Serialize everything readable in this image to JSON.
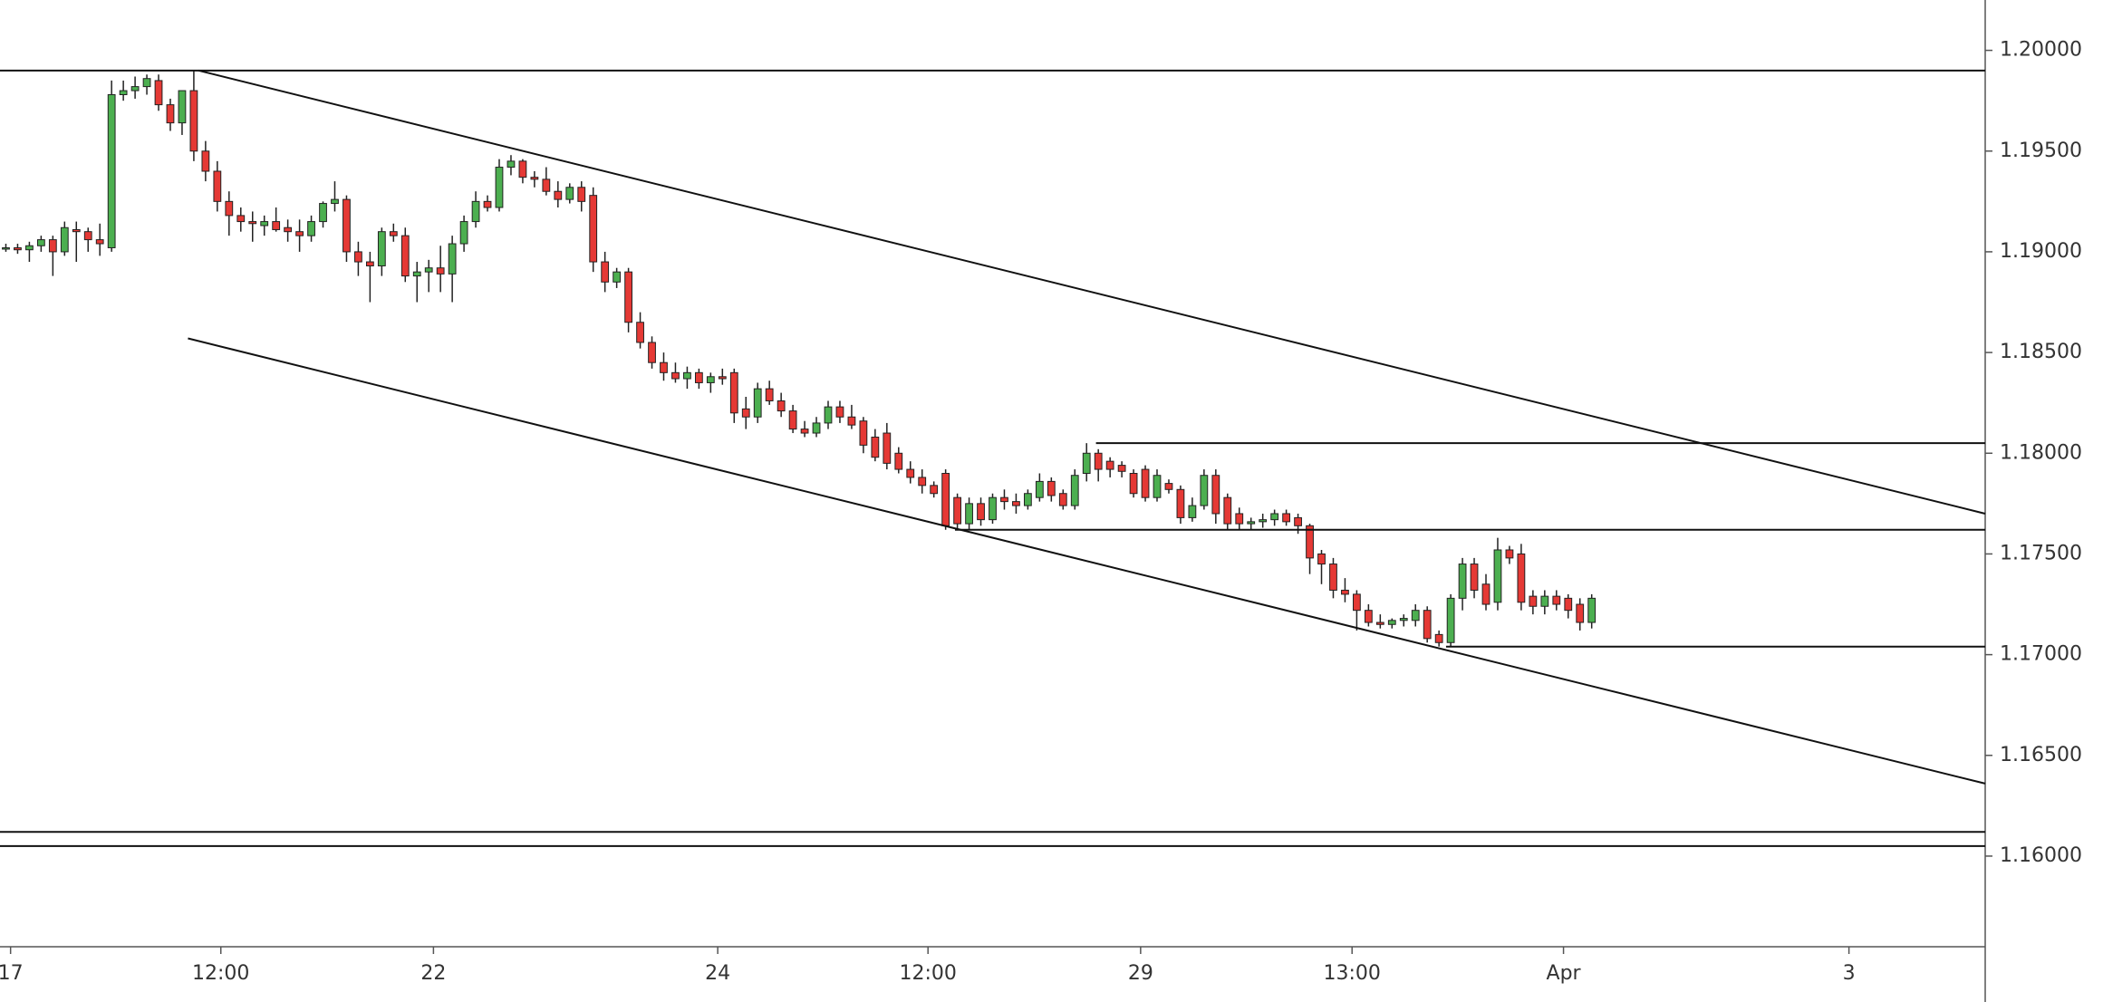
{
  "chart_data": {
    "type": "candlestick",
    "up_color": "#4caf50",
    "down_color": "#e53935",
    "wick_color": "#222222",
    "line_color": "#111111",
    "xlim": [
      -0.5,
      168.5
    ],
    "ylim": [
      1.1555,
      1.2025
    ],
    "xticks": [
      {
        "value": 0.4,
        "label": "17"
      },
      {
        "value": 18.3,
        "label": "12:00"
      },
      {
        "value": 36.4,
        "label": "22"
      },
      {
        "value": 60.6,
        "label": "24"
      },
      {
        "value": 78.5,
        "label": "12:00"
      },
      {
        "value": 96.6,
        "label": "29"
      },
      {
        "value": 114.6,
        "label": "13:00"
      },
      {
        "value": 132.6,
        "label": "Apr"
      },
      {
        "value": 156.9,
        "label": "3"
      }
    ],
    "yticks": [
      {
        "value": 1.16,
        "label": "1.16000"
      },
      {
        "value": 1.165,
        "label": "1.16500"
      },
      {
        "value": 1.17,
        "label": "1.17000"
      },
      {
        "value": 1.175,
        "label": "1.17500"
      },
      {
        "value": 1.18,
        "label": "1.18000"
      },
      {
        "value": 1.185,
        "label": "1.18500"
      },
      {
        "value": 1.19,
        "label": "1.19000"
      },
      {
        "value": 1.195,
        "label": "1.19500"
      },
      {
        "value": 1.2,
        "label": "1.20000"
      }
    ],
    "candles": [
      [
        1.1902,
        1.1904,
        1.19,
        1.1902
      ],
      [
        1.1902,
        1.1904,
        1.1899,
        1.1901
      ],
      [
        1.1901,
        1.1905,
        1.1895,
        1.1903
      ],
      [
        1.1903,
        1.1908,
        1.19,
        1.1906
      ],
      [
        1.1906,
        1.1908,
        1.1888,
        1.19
      ],
      [
        1.19,
        1.1915,
        1.1898,
        1.1912
      ],
      [
        1.1911,
        1.1915,
        1.1895,
        1.191
      ],
      [
        1.191,
        1.1912,
        1.19,
        1.1906
      ],
      [
        1.1906,
        1.1914,
        1.1898,
        1.1904
      ],
      [
        1.1902,
        1.1985,
        1.19,
        1.1978
      ],
      [
        1.1978,
        1.1985,
        1.1975,
        1.198
      ],
      [
        1.198,
        1.1987,
        1.1976,
        1.1982
      ],
      [
        1.1982,
        1.1988,
        1.1978,
        1.1986
      ],
      [
        1.1985,
        1.1988,
        1.197,
        1.1973
      ],
      [
        1.1973,
        1.1976,
        1.196,
        1.1964
      ],
      [
        1.1964,
        1.198,
        1.1958,
        1.198
      ],
      [
        1.198,
        1.199,
        1.1945,
        1.195
      ],
      [
        1.195,
        1.1955,
        1.1935,
        1.194
      ],
      [
        1.194,
        1.1945,
        1.192,
        1.1925
      ],
      [
        1.1925,
        1.193,
        1.1908,
        1.1918
      ],
      [
        1.1918,
        1.1922,
        1.191,
        1.1915
      ],
      [
        1.1915,
        1.192,
        1.1905,
        1.1914
      ],
      [
        1.1913,
        1.1918,
        1.1908,
        1.1915
      ],
      [
        1.1915,
        1.1922,
        1.191,
        1.1911
      ],
      [
        1.1912,
        1.1916,
        1.1905,
        1.191
      ],
      [
        1.191,
        1.1916,
        1.19,
        1.1908
      ],
      [
        1.1908,
        1.1918,
        1.1905,
        1.1915
      ],
      [
        1.1915,
        1.1925,
        1.1912,
        1.1924
      ],
      [
        1.1924,
        1.1935,
        1.192,
        1.1926
      ],
      [
        1.1926,
        1.1928,
        1.1895,
        1.19
      ],
      [
        1.19,
        1.1905,
        1.1888,
        1.1895
      ],
      [
        1.1895,
        1.19,
        1.1875,
        1.1893
      ],
      [
        1.1893,
        1.1912,
        1.1888,
        1.191
      ],
      [
        1.191,
        1.1914,
        1.1905,
        1.1908
      ],
      [
        1.1908,
        1.1912,
        1.1885,
        1.1888
      ],
      [
        1.1888,
        1.1895,
        1.1875,
        1.189
      ],
      [
        1.189,
        1.1896,
        1.188,
        1.1892
      ],
      [
        1.1892,
        1.1903,
        1.188,
        1.1889
      ],
      [
        1.1889,
        1.1908,
        1.1875,
        1.1904
      ],
      [
        1.1904,
        1.1918,
        1.19,
        1.1915
      ],
      [
        1.1915,
        1.193,
        1.1912,
        1.1925
      ],
      [
        1.1925,
        1.1928,
        1.192,
        1.1922
      ],
      [
        1.1922,
        1.1946,
        1.192,
        1.1942
      ],
      [
        1.1942,
        1.1948,
        1.1938,
        1.1945
      ],
      [
        1.1945,
        1.1946,
        1.1934,
        1.1937
      ],
      [
        1.1937,
        1.194,
        1.1932,
        1.1936
      ],
      [
        1.1936,
        1.1942,
        1.1928,
        1.193
      ],
      [
        1.193,
        1.1935,
        1.1922,
        1.1926
      ],
      [
        1.1926,
        1.1934,
        1.1924,
        1.1932
      ],
      [
        1.1932,
        1.1935,
        1.192,
        1.1925
      ],
      [
        1.1928,
        1.1932,
        1.189,
        1.1895
      ],
      [
        1.1895,
        1.19,
        1.188,
        1.1885
      ],
      [
        1.1885,
        1.1892,
        1.1882,
        1.189
      ],
      [
        1.189,
        1.1892,
        1.186,
        1.1865
      ],
      [
        1.1865,
        1.187,
        1.1852,
        1.1855
      ],
      [
        1.1855,
        1.1858,
        1.1842,
        1.1845
      ],
      [
        1.1845,
        1.185,
        1.1836,
        1.184
      ],
      [
        1.184,
        1.1845,
        1.1835,
        1.1837
      ],
      [
        1.1837,
        1.1843,
        1.1832,
        1.184
      ],
      [
        1.184,
        1.1842,
        1.1832,
        1.1835
      ],
      [
        1.1835,
        1.184,
        1.183,
        1.1838
      ],
      [
        1.1838,
        1.1842,
        1.1834,
        1.1837
      ],
      [
        1.184,
        1.1842,
        1.1815,
        1.182
      ],
      [
        1.1822,
        1.1828,
        1.1812,
        1.1818
      ],
      [
        1.1818,
        1.1835,
        1.1815,
        1.1832
      ],
      [
        1.1832,
        1.1836,
        1.1824,
        1.1826
      ],
      [
        1.1826,
        1.183,
        1.1818,
        1.1821
      ],
      [
        1.1821,
        1.1824,
        1.181,
        1.1812
      ],
      [
        1.1812,
        1.1816,
        1.1808,
        1.181
      ],
      [
        1.181,
        1.1818,
        1.1808,
        1.1815
      ],
      [
        1.1815,
        1.1826,
        1.1812,
        1.1823
      ],
      [
        1.1823,
        1.1826,
        1.1815,
        1.1818
      ],
      [
        1.1818,
        1.1824,
        1.1812,
        1.1814
      ],
      [
        1.1816,
        1.1818,
        1.18,
        1.1804
      ],
      [
        1.1808,
        1.1812,
        1.1796,
        1.1798
      ],
      [
        1.181,
        1.1815,
        1.1792,
        1.1795
      ],
      [
        1.18,
        1.1803,
        1.179,
        1.1792
      ],
      [
        1.1792,
        1.1796,
        1.1785,
        1.1788
      ],
      [
        1.1788,
        1.1792,
        1.178,
        1.1784
      ],
      [
        1.1784,
        1.1786,
        1.1778,
        1.178
      ],
      [
        1.179,
        1.1792,
        1.1762,
        1.1764
      ],
      [
        1.1778,
        1.178,
        1.1762,
        1.1765
      ],
      [
        1.1765,
        1.1778,
        1.1762,
        1.1775
      ],
      [
        1.1775,
        1.1778,
        1.1764,
        1.1767
      ],
      [
        1.1767,
        1.178,
        1.1765,
        1.1778
      ],
      [
        1.1778,
        1.1782,
        1.1772,
        1.1776
      ],
      [
        1.1776,
        1.178,
        1.177,
        1.1774
      ],
      [
        1.1774,
        1.1782,
        1.1772,
        1.178
      ],
      [
        1.1778,
        1.179,
        1.1776,
        1.1786
      ],
      [
        1.1786,
        1.1788,
        1.1776,
        1.1779
      ],
      [
        1.178,
        1.1782,
        1.1772,
        1.1774
      ],
      [
        1.1774,
        1.1792,
        1.1772,
        1.1789
      ],
      [
        1.179,
        1.1805,
        1.1786,
        1.18
      ],
      [
        1.18,
        1.1802,
        1.1786,
        1.1792
      ],
      [
        1.1796,
        1.1798,
        1.1788,
        1.1792
      ],
      [
        1.1794,
        1.1796,
        1.1788,
        1.1791
      ],
      [
        1.179,
        1.1792,
        1.1778,
        1.178
      ],
      [
        1.1792,
        1.1794,
        1.1776,
        1.1778
      ],
      [
        1.1778,
        1.1792,
        1.1776,
        1.1789
      ],
      [
        1.1785,
        1.1787,
        1.178,
        1.1782
      ],
      [
        1.1782,
        1.1784,
        1.1765,
        1.1768
      ],
      [
        1.1768,
        1.1778,
        1.1766,
        1.1774
      ],
      [
        1.1774,
        1.1792,
        1.1772,
        1.1789
      ],
      [
        1.1789,
        1.1792,
        1.1765,
        1.177
      ],
      [
        1.1778,
        1.178,
        1.1762,
        1.1765
      ],
      [
        1.177,
        1.1773,
        1.1762,
        1.1765
      ],
      [
        1.1765,
        1.1768,
        1.1762,
        1.1766
      ],
      [
        1.1766,
        1.177,
        1.1763,
        1.1767
      ],
      [
        1.1767,
        1.1772,
        1.1764,
        1.177
      ],
      [
        1.177,
        1.1772,
        1.1764,
        1.1766
      ],
      [
        1.1768,
        1.177,
        1.176,
        1.1764
      ],
      [
        1.1764,
        1.1765,
        1.174,
        1.1748
      ],
      [
        1.175,
        1.1752,
        1.1735,
        1.1745
      ],
      [
        1.1745,
        1.1748,
        1.1728,
        1.1732
      ],
      [
        1.1732,
        1.1738,
        1.1726,
        1.173
      ],
      [
        1.173,
        1.1732,
        1.1712,
        1.1722
      ],
      [
        1.1722,
        1.1725,
        1.1714,
        1.1716
      ],
      [
        1.1716,
        1.172,
        1.1713,
        1.1715
      ],
      [
        1.1715,
        1.1718,
        1.1713,
        1.1717
      ],
      [
        1.1717,
        1.172,
        1.1714,
        1.1718
      ],
      [
        1.1717,
        1.1725,
        1.1714,
        1.1722
      ],
      [
        1.1722,
        1.1724,
        1.1706,
        1.1708
      ],
      [
        1.171,
        1.1712,
        1.1704,
        1.1706
      ],
      [
        1.1706,
        1.173,
        1.1704,
        1.1728
      ],
      [
        1.1728,
        1.1748,
        1.1722,
        1.1745
      ],
      [
        1.1745,
        1.1748,
        1.1728,
        1.1732
      ],
      [
        1.1735,
        1.174,
        1.1722,
        1.1725
      ],
      [
        1.1726,
        1.1758,
        1.1722,
        1.1752
      ],
      [
        1.1752,
        1.1754,
        1.1745,
        1.1748
      ],
      [
        1.175,
        1.1755,
        1.1722,
        1.1726
      ],
      [
        1.1729,
        1.1732,
        1.172,
        1.1724
      ],
      [
        1.1724,
        1.1732,
        1.172,
        1.1729
      ],
      [
        1.1729,
        1.1732,
        1.1722,
        1.1725
      ],
      [
        1.1728,
        1.173,
        1.1718,
        1.1722
      ],
      [
        1.1725,
        1.1728,
        1.1712,
        1.1716
      ],
      [
        1.1716,
        1.173,
        1.1713,
        1.1728
      ]
    ],
    "lines": [
      {
        "x": [
          -0.5,
          168.5
        ],
        "y": [
          1.199,
          1.199
        ]
      },
      {
        "x": [
          16.4,
          168.5
        ],
        "y": [
          1.199,
          1.177
        ]
      },
      {
        "x": [
          15.5,
          168.5
        ],
        "y": [
          1.1857,
          1.1636
        ]
      },
      {
        "x": [
          92.8,
          168.5
        ],
        "y": [
          1.1805,
          1.1805
        ]
      },
      {
        "x": [
          80.8,
          168.5
        ],
        "y": [
          1.1762,
          1.1762
        ]
      },
      {
        "x": [
          122.6,
          168.5
        ],
        "y": [
          1.1704,
          1.1704
        ]
      },
      {
        "x": [
          -0.5,
          168.5
        ],
        "y": [
          1.1612,
          1.1612
        ]
      },
      {
        "x": [
          -0.5,
          168.5
        ],
        "y": [
          1.1605,
          1.1605
        ]
      }
    ]
  }
}
